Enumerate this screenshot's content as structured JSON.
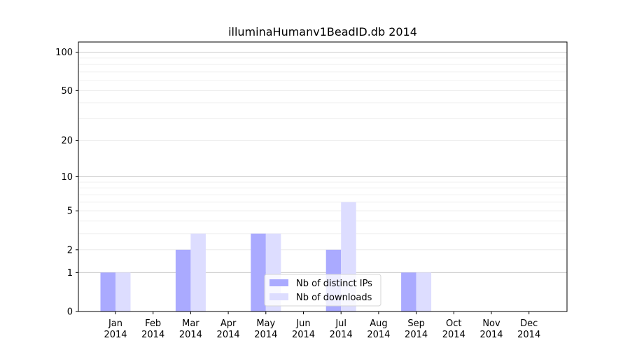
{
  "chart_data": {
    "type": "bar",
    "title": "illuminaHumanv1BeadID.db 2014",
    "xlabel": "",
    "ylabel": "",
    "yscale": "log1p",
    "ylim": [
      0,
      120
    ],
    "yticks": [
      0,
      1,
      2,
      5,
      10,
      20,
      50,
      100
    ],
    "grid": true,
    "legend_position": "bottom-center",
    "categories": [
      [
        "Jan",
        "2014"
      ],
      [
        "Feb",
        "2014"
      ],
      [
        "Mar",
        "2014"
      ],
      [
        "Apr",
        "2014"
      ],
      [
        "May",
        "2014"
      ],
      [
        "Jun",
        "2014"
      ],
      [
        "Jul",
        "2014"
      ],
      [
        "Aug",
        "2014"
      ],
      [
        "Sep",
        "2014"
      ],
      [
        "Oct",
        "2014"
      ],
      [
        "Nov",
        "2014"
      ],
      [
        "Dec",
        "2014"
      ]
    ],
    "series": [
      {
        "name": "Nb of distinct IPs",
        "color": "#aaaaff",
        "values": [
          1,
          0,
          2,
          0,
          3,
          0,
          2,
          0,
          1,
          0,
          0,
          0
        ]
      },
      {
        "name": "Nb of downloads",
        "color": "#ddddff",
        "values": [
          1,
          0,
          3,
          0,
          3,
          0,
          6,
          0,
          1,
          0,
          0,
          0
        ]
      }
    ]
  }
}
